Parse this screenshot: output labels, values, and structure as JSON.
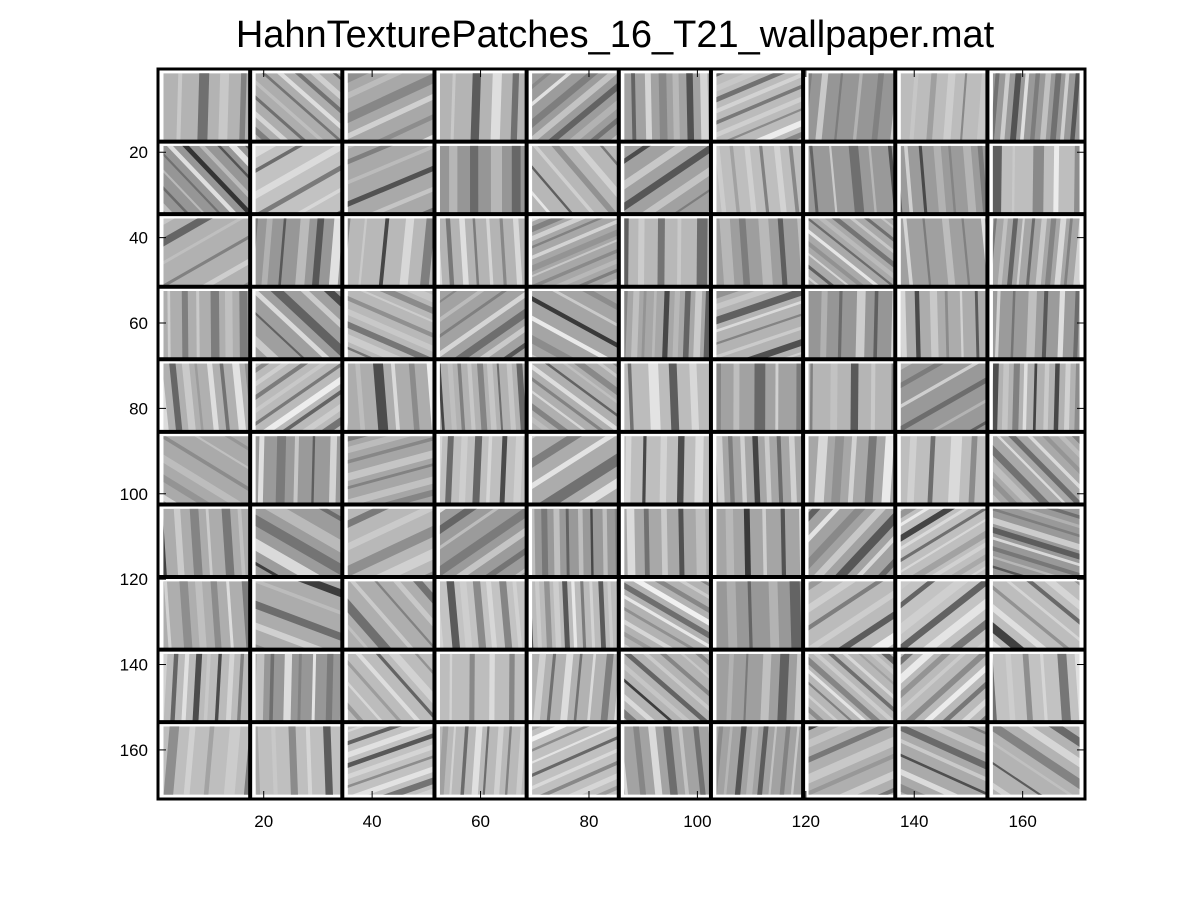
{
  "chart_data": {
    "type": "heatmap",
    "title": "HahnTexturePatches_16_T21_wallpaper.mat",
    "colormap": "gray",
    "xlim": [
      0.5,
      171.5
    ],
    "ylim": [
      0.5,
      171.5
    ],
    "y_direction": "reversed",
    "grid": false,
    "x_ticks": [
      20,
      40,
      60,
      80,
      100,
      120,
      140,
      160
    ],
    "y_ticks": [
      20,
      40,
      60,
      80,
      100,
      120,
      140,
      160
    ],
    "x_tick_labels": [
      "20",
      "40",
      "60",
      "80",
      "100",
      "120",
      "140",
      "160"
    ],
    "y_tick_labels": [
      "20",
      "40",
      "60",
      "80",
      "100",
      "120",
      "140",
      "160"
    ],
    "tiles": {
      "rows": 10,
      "cols": 10,
      "patch_size": 16,
      "separator": 1,
      "separator_color": "#000000"
    }
  }
}
